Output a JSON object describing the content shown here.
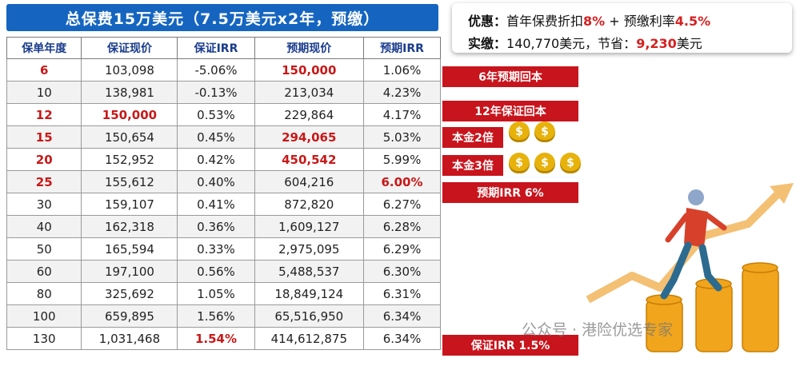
{
  "title": "总保费15万美元（7.5万美元x2年，预缴）",
  "promo": {
    "line1_prefix": "优惠：",
    "line1_text": "首年保费折扣",
    "line1_discount": "8%",
    "line1_mid": " + 预缴利率",
    "line1_rate": "4.5%",
    "line2_prefix": "实缴：",
    "line2_text": "140,770美元，节省：",
    "line2_saving": "9,230",
    "line2_unit": "美元"
  },
  "table": {
    "headers": [
      "保单年度",
      "保证现价",
      "保证IRR",
      "预期现价",
      "预期IRR"
    ],
    "rows": [
      [
        "6",
        "103,098",
        "-5.06%",
        "150,000",
        "1.06%"
      ],
      [
        "10",
        "138,981",
        "-0.13%",
        "213,034",
        "4.23%"
      ],
      [
        "12",
        "150,000",
        "0.53%",
        "229,864",
        "4.17%"
      ],
      [
        "15",
        "150,654",
        "0.45%",
        "294,065",
        "5.03%"
      ],
      [
        "20",
        "152,952",
        "0.42%",
        "450,542",
        "5.99%"
      ],
      [
        "25",
        "155,612",
        "0.40%",
        "604,216",
        "6.00%"
      ],
      [
        "30",
        "159,107",
        "0.41%",
        "872,820",
        "6.27%"
      ],
      [
        "40",
        "162,318",
        "0.36%",
        "1,609,127",
        "6.28%"
      ],
      [
        "50",
        "165,594",
        "0.33%",
        "2,975,095",
        "6.29%"
      ],
      [
        "60",
        "197,100",
        "0.56%",
        "5,488,537",
        "6.30%"
      ],
      [
        "80",
        "325,692",
        "1.05%",
        "18,849,124",
        "6.31%"
      ],
      [
        "100",
        "659,895",
        "1.56%",
        "65,516,950",
        "6.34%"
      ],
      [
        "130",
        "1,031,468",
        "1.54%",
        "414,612,875",
        "6.34%"
      ]
    ]
  },
  "tags": {
    "t6": "6年预期回本",
    "t12": "12年保证回本",
    "double": "本金2倍",
    "triple": "本金3倍",
    "irr6": "预期IRR 6%",
    "girr": "保证IRR 1.5%"
  },
  "bag_symbol": "$",
  "watermark": "公众号 · 港险优选专家",
  "colors": {
    "title_bg": "#1565c0",
    "accent_red": "#c8141c",
    "header_text": "#1a3c8e",
    "gold": "#e8b20c"
  }
}
